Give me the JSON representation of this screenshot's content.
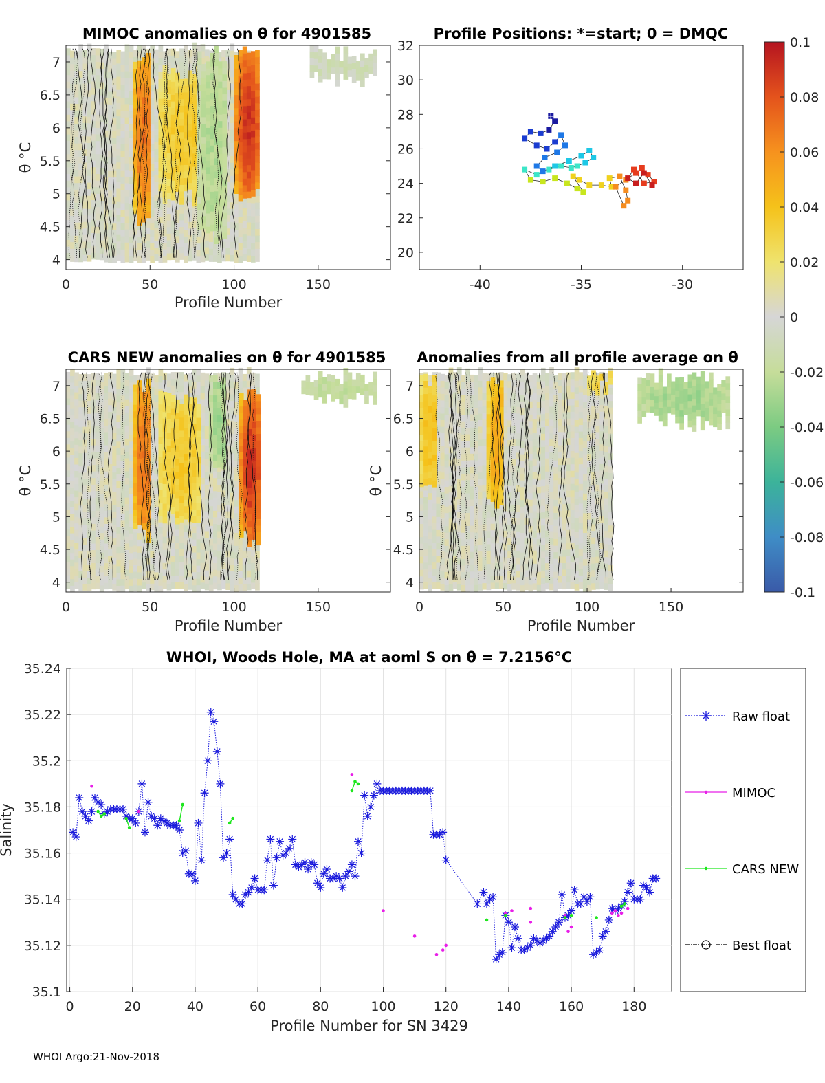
{
  "footer": "WHOI Argo:21-Nov-2018",
  "colorbar": {
    "ticks": [
      "0.1",
      "0.08",
      "0.06",
      "0.04",
      "0.02",
      "0",
      "-0.02",
      "-0.04",
      "-0.06",
      "-0.08",
      "-0.1"
    ],
    "ticks_display": [
      "0.1",
      "0.08",
      "0.06",
      "0.04",
      "0.02",
      "0",
      "-0.02",
      "-0.04",
      "-0.06",
      "-0.08",
      "-0.1"
    ],
    "range": [
      -0.1,
      0.1
    ],
    "colors": [
      "#3a5aa8",
      "#3f8dc6",
      "#3cb39a",
      "#7ccb82",
      "#c6dd9a",
      "#d6d6d6",
      "#efe36e",
      "#f5c21a",
      "#f6921e",
      "#e4531c",
      "#b51420"
    ]
  },
  "panels": {
    "mimoc": {
      "title": "MIMOC anomalies on θ  for 4901585",
      "ylabel": "θ °C",
      "xlabel": "Profile Number",
      "xticks": [
        "0",
        "50",
        "100",
        "150"
      ],
      "yticks": [
        "7",
        "6.5",
        "6",
        "5.5",
        "5",
        "4.5",
        "4"
      ]
    },
    "positions": {
      "title": "Profile Positions: *=start; 0 = DMQC",
      "xticks": [
        "-40",
        "-35",
        "-30"
      ],
      "yticks": [
        "32",
        "30",
        "28",
        "26",
        "24",
        "22",
        "20"
      ]
    },
    "cars": {
      "title": "CARS NEW anomalies on θ for 4901585",
      "ylabel": "θ °C",
      "xlabel": "Profile Number",
      "xticks": [
        "0",
        "50",
        "100",
        "150"
      ],
      "yticks": [
        "7",
        "6.5",
        "6",
        "5.5",
        "5",
        "4.5",
        "4"
      ]
    },
    "avg": {
      "title": "Anomalies from all profile average on θ",
      "ylabel": "θ °C",
      "xlabel": "Profile Number",
      "xticks": [
        "0",
        "50",
        "100",
        "150"
      ],
      "yticks": [
        "7",
        "6.5",
        "6",
        "5.5",
        "5",
        "4.5",
        "4"
      ]
    },
    "salinity": {
      "title": "WHOI, Woods Hole, MA at aoml S on θ = 7.2156°C",
      "ylabel": "Salinity",
      "xlabel": "Profile Number for SN 3429",
      "xticks": [
        "0",
        "20",
        "40",
        "60",
        "80",
        "100",
        "120",
        "140",
        "160",
        "180"
      ],
      "yticks": [
        "35.24",
        "35.22",
        "35.2",
        "35.18",
        "35.16",
        "35.14",
        "35.12",
        "35.1"
      ],
      "legend": [
        "Raw float",
        "MIMOC",
        "CARS NEW",
        "Best float"
      ]
    }
  },
  "chart_data": [
    {
      "type": "heatmap",
      "title": "MIMOC anomalies on θ  for 4901585",
      "xlabel": "Profile Number",
      "ylabel": "θ °C",
      "xlim": [
        0,
        193
      ],
      "ylim": [
        3.85,
        7.25
      ],
      "features": [
        {
          "x": [
            0,
            115
          ],
          "theta": [
            3.95,
            7.2
          ],
          "anomaly": 0.0
        },
        {
          "x": [
            40,
            50
          ],
          "theta": [
            4.5,
            7.1
          ],
          "anomaly": 0.07
        },
        {
          "x": [
            55,
            85
          ],
          "theta": [
            4.8,
            6.9
          ],
          "anomaly": 0.035
        },
        {
          "x": [
            100,
            115
          ],
          "theta": [
            4.8,
            7.2
          ],
          "anomaly": 0.09
        },
        {
          "x": [
            78,
            95
          ],
          "theta": [
            4.2,
            7.2
          ],
          "anomaly": -0.025
        },
        {
          "x": [
            145,
            185
          ],
          "theta": [
            6.6,
            7.2
          ],
          "anomaly": -0.01
        }
      ]
    },
    {
      "type": "scatter",
      "title": "Profile Positions: *=start; 0 = DMQC",
      "xlim": [
        -43,
        -27
      ],
      "ylim": [
        19,
        32
      ],
      "x": [
        -36.5,
        -36.3,
        -36.6,
        -37.0,
        -37.5,
        -37.8,
        -37.2,
        -36.7,
        -36.3,
        -36.0,
        -35.8,
        -36.2,
        -36.8,
        -37.2,
        -36.9,
        -36.3,
        -35.6,
        -35.0,
        -34.6,
        -34.4,
        -34.8,
        -35.2,
        -35.5,
        -36.0,
        -36.6,
        -37.2,
        -37.8,
        -37.5,
        -36.9,
        -36.3,
        -35.7,
        -35.2,
        -34.9,
        -35.4,
        -35.1,
        -34.6,
        -34.0,
        -33.5,
        -33.6,
        -33.1,
        -32.8,
        -32.7,
        -32.9,
        -33.3,
        -32.8,
        -32.3,
        -32.0,
        -31.7,
        -31.4,
        -31.9,
        -32.4,
        -32.7,
        -32.3,
        -31.9,
        -31.5
      ],
      "y": [
        27.9,
        27.6,
        27.1,
        26.9,
        27.0,
        26.6,
        26.2,
        26.0,
        26.4,
        26.8,
        26.2,
        25.8,
        25.5,
        25.0,
        24.7,
        25.0,
        25.3,
        25.6,
        25.9,
        25.5,
        25.2,
        25.0,
        24.9,
        25.0,
        24.8,
        24.5,
        24.8,
        24.2,
        24.1,
        24.3,
        24.0,
        23.7,
        23.5,
        24.4,
        24.2,
        23.9,
        23.9,
        23.8,
        24.3,
        24.4,
        23.6,
        23.0,
        22.7,
        23.8,
        24.2,
        24.6,
        24.9,
        24.5,
        24.1,
        24.0,
        24.8,
        24.3,
        24.0,
        24.6,
        23.9
      ]
    },
    {
      "type": "heatmap",
      "title": "CARS NEW anomalies on θ for 4901585",
      "xlabel": "Profile Number",
      "ylabel": "θ °C",
      "xlim": [
        0,
        193
      ],
      "ylim": [
        3.85,
        7.25
      ],
      "features": [
        {
          "x": [
            0,
            115
          ],
          "theta": [
            3.85,
            7.2
          ],
          "anomaly": 0.0
        },
        {
          "x": [
            40,
            50
          ],
          "theta": [
            4.6,
            7.1
          ],
          "anomaly": 0.07
        },
        {
          "x": [
            55,
            80
          ],
          "theta": [
            4.8,
            6.9
          ],
          "anomaly": 0.035
        },
        {
          "x": [
            103,
            115
          ],
          "theta": [
            4.5,
            6.9
          ],
          "anomaly": 0.09
        },
        {
          "x": [
            85,
            95
          ],
          "theta": [
            5.5,
            7.2
          ],
          "anomaly": -0.03
        },
        {
          "x": [
            140,
            185
          ],
          "theta": [
            6.6,
            7.2
          ],
          "anomaly": -0.02
        }
      ]
    },
    {
      "type": "heatmap",
      "title": "Anomalies from all profile average on θ",
      "xlabel": "Profile Number",
      "ylabel": "θ °C",
      "xlim": [
        0,
        193
      ],
      "ylim": [
        3.85,
        7.25
      ],
      "features": [
        {
          "x": [
            0,
            115
          ],
          "theta": [
            3.85,
            7.2
          ],
          "anomaly": 0.0
        },
        {
          "x": [
            0,
            10
          ],
          "theta": [
            5.2,
            7.2
          ],
          "anomaly": 0.04
        },
        {
          "x": [
            40,
            50
          ],
          "theta": [
            5.0,
            7.2
          ],
          "anomaly": 0.05
        },
        {
          "x": [
            100,
            115
          ],
          "theta": [
            6.8,
            7.2
          ],
          "anomaly": 0.03
        },
        {
          "x": [
            130,
            185
          ],
          "theta": [
            6.3,
            7.2
          ],
          "anomaly": -0.03
        }
      ]
    },
    {
      "type": "line",
      "title": "WHOI, Woods Hole, MA at aoml S on θ = 7.2156°C",
      "xlabel": "Profile Number for SN 3429",
      "ylabel": "Salinity",
      "xlim": [
        -1,
        192
      ],
      "ylim": [
        35.1,
        35.24
      ],
      "grid": true,
      "legend_position": "right",
      "series": [
        {
          "name": "Raw float",
          "x": [
            1,
            2,
            3,
            4,
            5,
            6,
            7,
            8,
            9,
            10,
            11,
            12,
            13,
            14,
            15,
            16,
            17,
            18,
            19,
            20,
            21,
            22,
            23,
            24,
            25,
            26,
            27,
            28,
            29,
            30,
            31,
            32,
            33,
            34,
            35,
            36,
            37,
            38,
            39,
            40,
            41,
            42,
            43,
            44,
            45,
            46,
            47,
            48,
            49,
            50,
            51,
            52,
            53,
            54,
            55,
            56,
            57,
            58,
            59,
            60,
            61,
            62,
            63,
            64,
            65,
            66,
            67,
            68,
            69,
            70,
            71,
            72,
            73,
            74,
            75,
            76,
            77,
            78,
            79,
            80,
            81,
            82,
            83,
            84,
            85,
            86,
            87,
            88,
            89,
            90,
            91,
            92,
            93,
            94,
            95,
            96,
            97,
            98,
            99,
            100,
            101,
            102,
            103,
            104,
            105,
            106,
            107,
            108,
            109,
            110,
            111,
            112,
            113,
            114,
            115,
            116,
            117,
            118,
            119,
            120,
            130,
            132,
            133,
            134,
            135,
            136,
            137,
            138,
            139,
            140,
            141,
            142,
            143,
            144,
            145,
            146,
            147,
            148,
            149,
            150,
            151,
            152,
            153,
            154,
            155,
            156,
            157,
            158,
            159,
            160,
            161,
            162,
            163,
            164,
            165,
            166,
            167,
            168,
            169,
            170,
            171,
            172,
            173,
            174,
            175,
            176,
            177,
            178,
            179,
            180,
            181,
            182,
            183,
            184,
            185,
            186,
            187
          ],
          "y": [
            35.169,
            35.167,
            35.184,
            35.178,
            35.176,
            35.174,
            35.178,
            35.184,
            35.182,
            35.181,
            35.177,
            35.178,
            35.179,
            35.179,
            35.179,
            35.179,
            35.179,
            35.176,
            35.175,
            35.175,
            35.173,
            35.178,
            35.19,
            35.169,
            35.182,
            35.176,
            35.175,
            35.172,
            35.175,
            35.174,
            35.173,
            35.172,
            35.172,
            35.172,
            35.17,
            35.16,
            35.161,
            35.151,
            35.151,
            35.148,
            35.173,
            35.157,
            35.186,
            35.2,
            35.221,
            35.217,
            35.204,
            35.19,
            35.158,
            35.16,
            35.166,
            35.142,
            35.14,
            35.138,
            35.138,
            35.142,
            35.143,
            35.145,
            35.149,
            35.144,
            35.144,
            35.144,
            35.157,
            35.166,
            35.146,
            35.158,
            35.165,
            35.159,
            35.16,
            35.162,
            35.166,
            35.155,
            35.154,
            35.155,
            35.156,
            35.153,
            35.156,
            35.155,
            35.147,
            35.145,
            35.151,
            35.153,
            35.149,
            35.149,
            35.15,
            35.149,
            35.145,
            35.15,
            35.152,
            35.155,
            35.15,
            35.165,
            35.16,
            35.185,
            35.176,
            35.18,
            35.185,
            35.19,
            35.187,
            35.187,
            35.187,
            35.187,
            35.187,
            35.187,
            35.187,
            35.187,
            35.187,
            35.187,
            35.187,
            35.187,
            35.187,
            35.187,
            35.187,
            35.187,
            35.187,
            35.168,
            35.168,
            35.168,
            35.169,
            35.157,
            35.138,
            35.143,
            35.138,
            35.14,
            35.141,
            35.114,
            35.116,
            35.117,
            35.133,
            35.13,
            35.119,
            35.128,
            35.123,
            35.118,
            35.118,
            35.119,
            35.12,
            35.123,
            35.122,
            35.121,
            35.122,
            35.123,
            35.124,
            35.126,
            35.128,
            35.13,
            35.142,
            35.132,
            35.133,
            35.135,
            35.144,
            35.138,
            35.138,
            35.141,
            35.139,
            35.141,
            35.116,
            35.117,
            35.118,
            35.124,
            35.126,
            35.131,
            35.136,
            35.135,
            35.136,
            35.137,
            35.139,
            35.143,
            35.147,
            35.14,
            35.14,
            35.14,
            35.146,
            35.145,
            35.143,
            35.149,
            35.149
          ]
        },
        {
          "name": "MIMOC",
          "x": [
            7,
            18,
            22,
            90,
            100,
            110,
            117,
            119,
            120,
            139,
            141,
            147,
            147,
            158,
            159,
            160,
            173,
            174,
            175,
            176,
            178
          ],
          "y": [
            35.189,
            35.175,
            35.178,
            35.194,
            35.135,
            35.124,
            35.116,
            35.118,
            35.12,
            35.134,
            35.135,
            35.13,
            35.136,
            35.133,
            35.126,
            35.128,
            35.134,
            35.135,
            35.133,
            35.134,
            35.136
          ]
        },
        {
          "name": "CARS NEW",
          "x": [
            9,
            10,
            11,
            18,
            19,
            35,
            36,
            51,
            52,
            90,
            91,
            92,
            133,
            139,
            158,
            160,
            168,
            176,
            177
          ],
          "y": [
            35.178,
            35.176,
            35.177,
            35.175,
            35.171,
            35.174,
            35.181,
            35.173,
            35.175,
            35.187,
            35.191,
            35.19,
            35.131,
            35.133,
            35.132,
            35.133,
            35.132,
            35.137,
            35.138
          ]
        },
        {
          "name": "Best float",
          "x": [],
          "y": []
        }
      ]
    }
  ]
}
